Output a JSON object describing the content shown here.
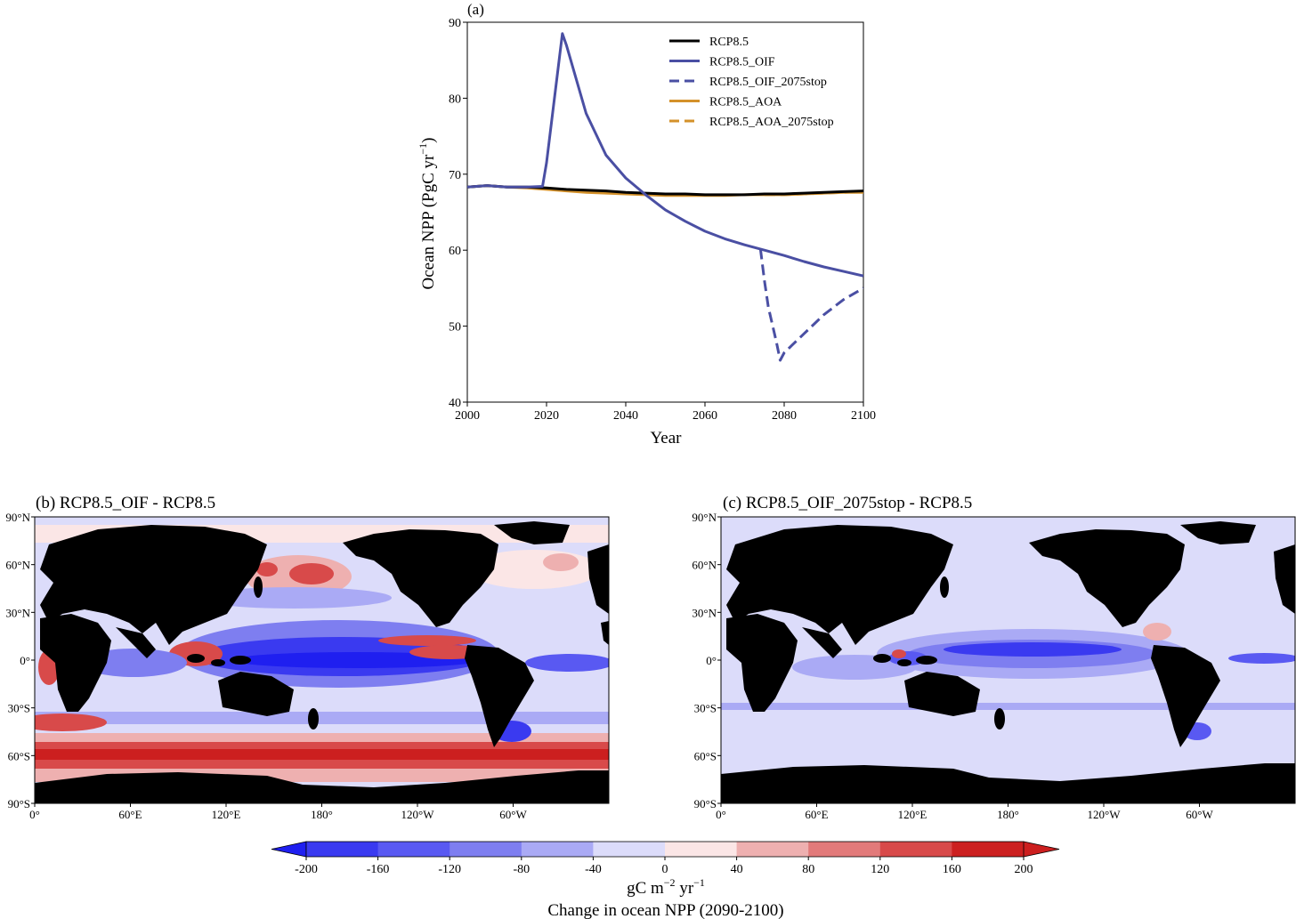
{
  "chart_data": [
    {
      "type": "line",
      "panel_label": "(a)",
      "xlabel": "Year",
      "ylabel_main": "Ocean NPP (PgC yr",
      "ylabel_sup": "−1",
      "ylabel_close": ")",
      "xlim": [
        2000,
        2100
      ],
      "ylim": [
        40,
        90
      ],
      "xticks": [
        2000,
        2020,
        2040,
        2060,
        2080,
        2100
      ],
      "yticks": [
        40,
        50,
        60,
        70,
        80,
        90
      ],
      "grid": false,
      "legend_position": "top-right",
      "series": [
        {
          "name": "RCP8.5",
          "color": "#000000",
          "style": "solid",
          "x": [
            2000,
            2005,
            2010,
            2015,
            2020,
            2025,
            2030,
            2035,
            2040,
            2045,
            2050,
            2055,
            2060,
            2065,
            2070,
            2075,
            2080,
            2085,
            2090,
            2095,
            2100
          ],
          "y": [
            68.3,
            68.5,
            68.3,
            68.3,
            68.2,
            68.0,
            67.9,
            67.8,
            67.6,
            67.5,
            67.4,
            67.4,
            67.3,
            67.3,
            67.3,
            67.4,
            67.4,
            67.5,
            67.6,
            67.7,
            67.8
          ]
        },
        {
          "name": "RCP8.5_OIF",
          "color": "#4a4fa3",
          "style": "solid",
          "x": [
            2000,
            2005,
            2010,
            2015,
            2019,
            2020,
            2024,
            2025,
            2030,
            2035,
            2040,
            2045,
            2050,
            2055,
            2060,
            2065,
            2070,
            2075,
            2080,
            2085,
            2090,
            2095,
            2100
          ],
          "y": [
            68.3,
            68.5,
            68.3,
            68.3,
            68.4,
            71.5,
            88.5,
            87.0,
            78.0,
            72.5,
            69.5,
            67.3,
            65.3,
            63.8,
            62.5,
            61.5,
            60.7,
            60.0,
            59.3,
            58.5,
            57.8,
            57.2,
            56.6
          ]
        },
        {
          "name": "RCP8.5_OIF_2075stop",
          "color": "#4a4fa3",
          "style": "dashed",
          "x": [
            2074,
            2075,
            2076,
            2078,
            2079,
            2080,
            2085,
            2090,
            2095,
            2100
          ],
          "y": [
            60.2,
            56.0,
            52.5,
            48.0,
            45.5,
            46.5,
            49.0,
            51.5,
            53.5,
            55.0
          ]
        },
        {
          "name": "RCP8.5_AOA",
          "color": "#d4912a",
          "style": "solid",
          "x": [
            2000,
            2005,
            2010,
            2015,
            2020,
            2025,
            2030,
            2035,
            2040,
            2045,
            2050,
            2055,
            2060,
            2065,
            2070,
            2075,
            2080,
            2085,
            2090,
            2095,
            2100
          ],
          "y": [
            68.3,
            68.5,
            68.3,
            68.2,
            68.0,
            67.8,
            67.6,
            67.5,
            67.4,
            67.3,
            67.2,
            67.2,
            67.2,
            67.2,
            67.3,
            67.3,
            67.3,
            67.4,
            67.5,
            67.6,
            67.6
          ]
        },
        {
          "name": "RCP8.5_AOA_2075stop",
          "color": "#d4912a",
          "style": "dashed",
          "x": [
            2075,
            2080,
            2085,
            2090,
            2095,
            2100
          ],
          "y": [
            67.3,
            67.3,
            67.4,
            67.5,
            67.6,
            67.7
          ]
        }
      ]
    },
    {
      "type": "heatmap",
      "panel_label": "(b) RCP8.5_OIF - RCP8.5",
      "lat_ticks": [
        "90°N",
        "60°N",
        "30°N",
        "0°",
        "30°S",
        "60°S",
        "90°S"
      ],
      "lon_ticks": [
        "0°",
        "60°E",
        "120°E",
        "180°",
        "120°W",
        "60°W"
      ],
      "description_fields": {
        "land": "#000000"
      }
    },
    {
      "type": "heatmap",
      "panel_label": "(c) RCP8.5_OIF_2075stop - RCP8.5",
      "lat_ticks": [
        "90°N",
        "60°N",
        "30°N",
        "0°",
        "30°S",
        "60°S",
        "90°S"
      ],
      "lon_ticks": [
        "0°",
        "60°E",
        "120°E",
        "180°",
        "120°W",
        "60°W"
      ]
    }
  ],
  "colorbar": {
    "ticks": [
      "-200",
      "-160",
      "-120",
      "-80",
      "-40",
      "0",
      "40",
      "80",
      "120",
      "160",
      "200"
    ],
    "colors": [
      "#3a3af0",
      "#5959f2",
      "#7e7ef0",
      "#aaaaf5",
      "#dcdcfa",
      "#fbe6e6",
      "#eeb0b0",
      "#e27a7a",
      "#d84a4a",
      "#cc2020"
    ],
    "under_color": "#1f1ff0",
    "over_color": "#cc1f1f",
    "unit_main": "gC m",
    "unit_sup": "−2",
    "unit_tail": " yr",
    "unit_sup2": "−1",
    "title": "Change in ocean NPP (2090-2100)"
  }
}
